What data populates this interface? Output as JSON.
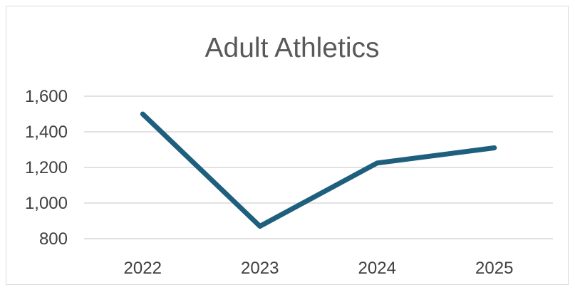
{
  "chart_data": {
    "type": "line",
    "title": "Adult Athletics",
    "xlabel": "",
    "ylabel": "",
    "categories": [
      "2022",
      "2023",
      "2024",
      "2025"
    ],
    "series": [
      {
        "values": [
          1500,
          870,
          1225,
          1310
        ]
      }
    ],
    "ylim": [
      800,
      1600
    ],
    "y_ticks": [
      800,
      1000,
      1200,
      1400,
      1600
    ],
    "y_tick_labels": [
      "800",
      "1,000",
      "1,200",
      "1,400",
      "1,600"
    ],
    "grid": true,
    "legend": "none",
    "colors": {
      "line": "#1F5F7E",
      "grid": "#d9d9d9",
      "title": "#595959",
      "tick": "#404040"
    }
  }
}
